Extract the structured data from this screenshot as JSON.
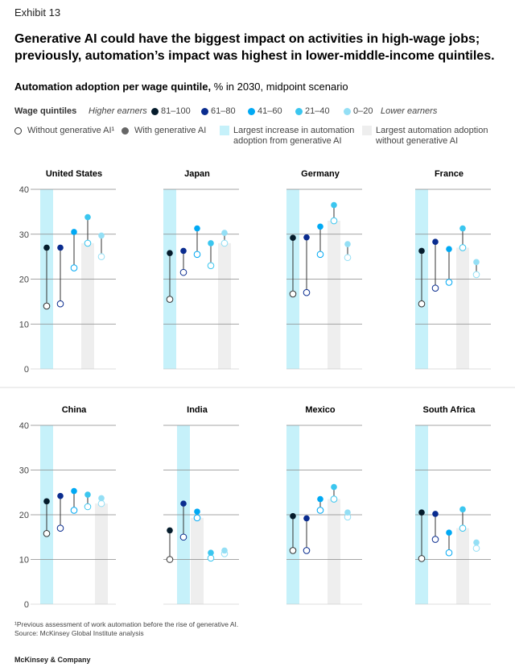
{
  "exhibit": "Exhibit 13",
  "title": "Generative AI could have the biggest impact on activities in high-wage jobs; previously, automation’s impact was highest in lower-middle-income quintiles.",
  "subtitle_bold": "Automation adoption per wage quintile,",
  "subtitle_rest": " % in 2030, midpoint scenario",
  "legend": {
    "wage_label": "Wage quintiles",
    "higher": "Higher earners",
    "lower": "Lower earners",
    "quintiles": [
      {
        "label": "81–100",
        "color": "#051c2c"
      },
      {
        "label": "61–80",
        "color": "#0a2c8f"
      },
      {
        "label": "41–60",
        "color": "#00a9f4"
      },
      {
        "label": "21–40",
        "color": "#3bc6ef"
      },
      {
        "label": "0–20",
        "color": "#94dff5"
      }
    ],
    "without": "Without generative AI¹",
    "with": "With generative AI",
    "largest_increase": "Largest increase in automation adoption from generative AI",
    "largest_without": "Largest automation adoption without generative AI",
    "increase_color": "#c6f1fa",
    "without_color": "#eeeeee"
  },
  "footnote": "¹Previous assessment of work automation before the rise of generative AI.",
  "source": "Source: McKinsey Global Institute analysis",
  "brand": "McKinsey & Company",
  "chart_data": [
    {
      "type": "scatter",
      "title": "United States",
      "ylim": [
        0,
        40
      ],
      "yticks": [
        0,
        10,
        20,
        30,
        40
      ],
      "highlight_increase": 0,
      "highlight_without": 3,
      "series": [
        {
          "name": "Without generative AI",
          "values": [
            14,
            14.5,
            22.5,
            28,
            25
          ]
        },
        {
          "name": "With generative AI",
          "values": [
            27,
            27,
            30.5,
            33.8,
            29.7
          ]
        }
      ],
      "categories": [
        "81–100",
        "61–80",
        "41–60",
        "21–40",
        "0–20"
      ]
    },
    {
      "type": "scatter",
      "title": "Japan",
      "ylim": [
        0,
        40
      ],
      "yticks": [
        0,
        10,
        20,
        30,
        40
      ],
      "highlight_increase": 0,
      "highlight_without": 4,
      "series": [
        {
          "name": "Without generative AI",
          "values": [
            15.5,
            21.5,
            25.5,
            23,
            28
          ]
        },
        {
          "name": "With generative AI",
          "values": [
            25.8,
            26.3,
            31.3,
            28,
            30.3
          ]
        }
      ],
      "categories": [
        "81–100",
        "61–80",
        "41–60",
        "21–40",
        "0–20"
      ]
    },
    {
      "type": "scatter",
      "title": "Germany",
      "ylim": [
        0,
        40
      ],
      "yticks": [
        0,
        10,
        20,
        30,
        40
      ],
      "highlight_increase": 0,
      "highlight_without": 3,
      "series": [
        {
          "name": "Without generative AI",
          "values": [
            16.7,
            17,
            25.5,
            33,
            24.8
          ]
        },
        {
          "name": "With generative AI",
          "values": [
            29.2,
            29.3,
            31.7,
            36.5,
            27.8
          ]
        }
      ],
      "categories": [
        "81–100",
        "61–80",
        "41–60",
        "21–40",
        "0–20"
      ]
    },
    {
      "type": "scatter",
      "title": "France",
      "ylim": [
        0,
        40
      ],
      "yticks": [
        0,
        10,
        20,
        30,
        40
      ],
      "highlight_increase": 0,
      "highlight_without": 3,
      "series": [
        {
          "name": "Without generative AI",
          "values": [
            14.5,
            18,
            19.3,
            27,
            21
          ]
        },
        {
          "name": "With generative AI",
          "values": [
            26.3,
            28.3,
            26.7,
            31.3,
            23.8
          ]
        }
      ],
      "categories": [
        "81–100",
        "61–80",
        "41–60",
        "21–40",
        "0–20"
      ]
    },
    {
      "type": "scatter",
      "title": "China",
      "ylim": [
        0,
        40
      ],
      "yticks": [
        0,
        10,
        20,
        30,
        40
      ],
      "highlight_increase": 0,
      "highlight_without": 4,
      "series": [
        {
          "name": "Without generative AI",
          "values": [
            15.8,
            17,
            21,
            21.8,
            22.5
          ]
        },
        {
          "name": "With generative AI",
          "values": [
            23,
            24.2,
            25.3,
            24.5,
            23.7
          ]
        }
      ],
      "categories": [
        "81–100",
        "61–80",
        "41–60",
        "21–40",
        "0–20"
      ]
    },
    {
      "type": "scatter",
      "title": "India",
      "ylim": [
        0,
        40
      ],
      "yticks": [
        0,
        10,
        20,
        30,
        40
      ],
      "highlight_increase": 1,
      "highlight_without": 2,
      "series": [
        {
          "name": "Without generative AI",
          "values": [
            10,
            15,
            19.3,
            10.3,
            11.3
          ]
        },
        {
          "name": "With generative AI",
          "values": [
            16.5,
            22.5,
            20.7,
            11.5,
            12
          ]
        }
      ],
      "categories": [
        "81–100",
        "61–80",
        "41–60",
        "21–40",
        "0–20"
      ]
    },
    {
      "type": "scatter",
      "title": "Mexico",
      "ylim": [
        0,
        40
      ],
      "yticks": [
        0,
        10,
        20,
        30,
        40
      ],
      "highlight_increase": 0,
      "highlight_without": 3,
      "series": [
        {
          "name": "Without generative AI",
          "values": [
            12,
            12,
            21,
            23.5,
            19.5
          ]
        },
        {
          "name": "With generative AI",
          "values": [
            19.7,
            19.2,
            23.5,
            26.2,
            20.5
          ]
        }
      ],
      "categories": [
        "81–100",
        "61–80",
        "41–60",
        "21–40",
        "0–20"
      ]
    },
    {
      "type": "scatter",
      "title": "South Africa",
      "ylim": [
        0,
        40
      ],
      "yticks": [
        0,
        10,
        20,
        30,
        40
      ],
      "highlight_increase": 0,
      "highlight_without": 3,
      "series": [
        {
          "name": "Without generative AI",
          "values": [
            10.2,
            14.5,
            11.5,
            17,
            12.5
          ]
        },
        {
          "name": "With generative AI",
          "values": [
            20.5,
            20.2,
            16,
            21.2,
            13.8
          ]
        }
      ],
      "categories": [
        "81–100",
        "61–80",
        "41–60",
        "21–40",
        "0–20"
      ]
    }
  ]
}
